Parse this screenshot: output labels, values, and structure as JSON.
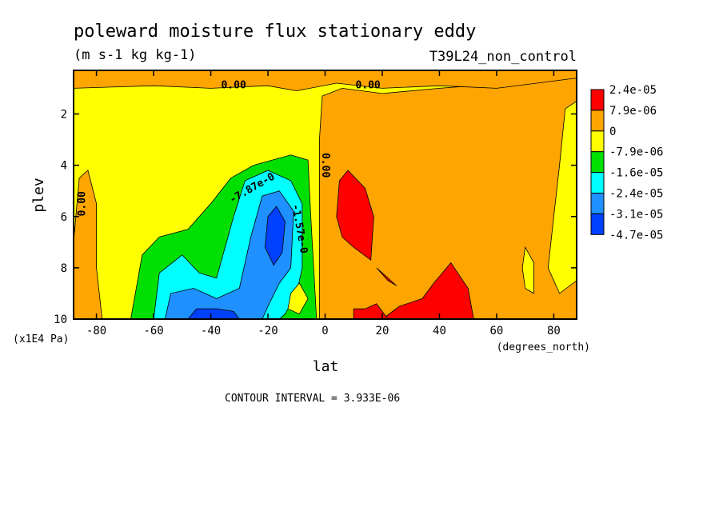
{
  "chart_data": {
    "type": "heatmap",
    "title": "poleward moisture flux stationary eddy",
    "units": "(m s-1 kg kg-1)",
    "dataset": "T39L24_non_control",
    "xlabel": "lat",
    "x_units": "(degrees_north)",
    "ylabel": "plev",
    "y_units": "(x1E4 Pa)",
    "xlim": [
      -88,
      88
    ],
    "ylim": [
      0.3,
      10
    ],
    "y_inverted": true,
    "x_ticks": [
      -80,
      -60,
      -40,
      -20,
      0,
      20,
      40,
      60,
      80
    ],
    "x_tick_labels": [
      "-80",
      "-60",
      "-40",
      "-20",
      "0",
      "20",
      "40",
      "60",
      "80"
    ],
    "y_ticks": [
      2,
      4,
      6,
      8,
      10
    ],
    "y_tick_labels": [
      "2",
      "4",
      "6",
      "8",
      "10"
    ],
    "contour_interval_text": "CONTOUR INTERVAL = 3.933E-06",
    "legend": [
      {
        "label": "2.4e-05",
        "color": "#ff0000"
      },
      {
        "label": "7.9e-06",
        "color": "#ffa500"
      },
      {
        "label": "0",
        "color": "#ffa500"
      },
      {
        "label": "-7.9e-06",
        "color": "#ffff00"
      },
      {
        "label": "-1.6e-05",
        "color": "#00e000"
      },
      {
        "label": "-2.4e-05",
        "color": "#00ffff"
      },
      {
        "label": "-3.1e-05",
        "color": "#1e90ff"
      },
      {
        "label": "-4.7e-05",
        "color": "#0040ff"
      }
    ],
    "legend_swatches": [
      "#ff0000",
      "#ffa500",
      "#ffff00",
      "#00e000",
      "#00ffff",
      "#1e90ff",
      "#0040ff"
    ],
    "contour_labels": [
      "0.00",
      "0.00",
      "0.00",
      "0.00",
      "-7.87e-0",
      "-1.57e-0"
    ],
    "regions": [
      {
        "name": "bg-yellow",
        "color": "#ffff00",
        "poly": [
          [
            -88,
            0.3
          ],
          [
            88,
            0.3
          ],
          [
            88,
            10
          ],
          [
            -88,
            10
          ]
        ]
      },
      {
        "name": "nh-orange",
        "color": "#ffa500",
        "poly": [
          [
            -1,
            1.3
          ],
          [
            6,
            1.0
          ],
          [
            20,
            1.2
          ],
          [
            40,
            1.0
          ],
          [
            88,
            0.6
          ],
          [
            88,
            10
          ],
          [
            -2,
            10
          ],
          [
            -2,
            3.0
          ]
        ]
      },
      {
        "name": "top-orange",
        "color": "#ffa500",
        "poly": [
          [
            -88,
            0.3
          ],
          [
            88,
            0.3
          ],
          [
            88,
            0.6
          ],
          [
            60,
            1.0
          ],
          [
            40,
            0.9
          ],
          [
            20,
            1.0
          ],
          [
            4,
            0.8
          ],
          [
            -10,
            1.1
          ],
          [
            -20,
            0.9
          ],
          [
            -40,
            1.0
          ],
          [
            -60,
            0.9
          ],
          [
            -88,
            1.0
          ]
        ]
      },
      {
        "name": "nh-yellow-patch-80",
        "color": "#ffff00",
        "poly": [
          [
            84,
            1.8
          ],
          [
            88,
            1.5
          ],
          [
            88,
            8.5
          ],
          [
            82,
            9.0
          ],
          [
            78,
            8.0
          ],
          [
            80,
            6.0
          ],
          [
            82,
            4.0
          ]
        ]
      },
      {
        "name": "nh-yellow-patch-72",
        "color": "#ffff00",
        "poly": [
          [
            70,
            7.2
          ],
          [
            73,
            7.8
          ],
          [
            73,
            9.0
          ],
          [
            70,
            8.8
          ],
          [
            69,
            8.0
          ]
        ]
      },
      {
        "name": "sh-orange-left",
        "color": "#ffa500",
        "poly": [
          [
            -88,
            7.0
          ],
          [
            -86,
            4.5
          ],
          [
            -83,
            4.2
          ],
          [
            -80,
            5.5
          ],
          [
            -80,
            8.0
          ],
          [
            -78,
            10
          ],
          [
            -88,
            10
          ]
        ]
      },
      {
        "name": "sh-green",
        "color": "#00e000",
        "poly": [
          [
            -68,
            10
          ],
          [
            -64,
            7.5
          ],
          [
            -58,
            6.8
          ],
          [
            -48,
            6.5
          ],
          [
            -40,
            5.5
          ],
          [
            -33,
            4.5
          ],
          [
            -25,
            4.0
          ],
          [
            -12,
            3.6
          ],
          [
            -6,
            3.8
          ],
          [
            -5,
            6.0
          ],
          [
            -4,
            8.0
          ],
          [
            -3,
            10
          ]
        ]
      },
      {
        "name": "sh-cyan",
        "color": "#00ffff",
        "poly": [
          [
            -60,
            10
          ],
          [
            -58,
            8.2
          ],
          [
            -50,
            7.5
          ],
          [
            -44,
            8.2
          ],
          [
            -38,
            8.4
          ],
          [
            -32,
            6.0
          ],
          [
            -28,
            4.6
          ],
          [
            -20,
            4.2
          ],
          [
            -12,
            4.6
          ],
          [
            -8,
            5.5
          ],
          [
            -8,
            8.0
          ],
          [
            -10,
            9.0
          ],
          [
            -14,
            9.8
          ],
          [
            -16,
            10
          ]
        ]
      },
      {
        "name": "sh-blue",
        "color": "#1e90ff",
        "poly": [
          [
            -56,
            10
          ],
          [
            -54,
            9.0
          ],
          [
            -46,
            8.8
          ],
          [
            -38,
            9.2
          ],
          [
            -30,
            8.8
          ],
          [
            -26,
            6.8
          ],
          [
            -22,
            5.2
          ],
          [
            -16,
            5.0
          ],
          [
            -11,
            5.8
          ],
          [
            -12,
            8.0
          ],
          [
            -16,
            8.6
          ],
          [
            -20,
            9.5
          ],
          [
            -22,
            10
          ]
        ]
      },
      {
        "name": "sh-dark-blue-a",
        "color": "#0040ff",
        "poly": [
          [
            -48,
            10
          ],
          [
            -45,
            9.6
          ],
          [
            -38,
            9.6
          ],
          [
            -32,
            9.7
          ],
          [
            -30,
            10
          ]
        ]
      },
      {
        "name": "sh-dark-blue-b",
        "color": "#0040ff",
        "poly": [
          [
            -20,
            6.0
          ],
          [
            -17,
            5.6
          ],
          [
            -14,
            6.2
          ],
          [
            -15,
            7.4
          ],
          [
            -18,
            7.9
          ],
          [
            -21,
            7.2
          ]
        ]
      },
      {
        "name": "sh-yellow-small",
        "color": "#ffff00",
        "poly": [
          [
            -12,
            9.0
          ],
          [
            -9,
            8.6
          ],
          [
            -6,
            9.2
          ],
          [
            -9,
            9.8
          ],
          [
            -13,
            9.6
          ]
        ]
      },
      {
        "name": "nh-red-a",
        "color": "#ff0000",
        "poly": [
          [
            4,
            6.0
          ],
          [
            5,
            4.6
          ],
          [
            8,
            4.2
          ],
          [
            14,
            4.9
          ],
          [
            17,
            6.0
          ],
          [
            16,
            7.7
          ],
          [
            10,
            7.2
          ],
          [
            6,
            6.8
          ]
        ]
      },
      {
        "name": "nh-red-b",
        "color": "#ff0000",
        "poly": [
          [
            18,
            8.0
          ],
          [
            22,
            8.4
          ],
          [
            25,
            8.7
          ],
          [
            22,
            8.5
          ]
        ]
      },
      {
        "name": "nh-red-c",
        "color": "#ff0000",
        "poly": [
          [
            20,
            10
          ],
          [
            26,
            9.5
          ],
          [
            34,
            9.2
          ],
          [
            38,
            8.6
          ],
          [
            44,
            7.8
          ],
          [
            50,
            8.8
          ],
          [
            52,
            10
          ]
        ]
      },
      {
        "name": "nh-red-d",
        "color": "#ff0000",
        "poly": [
          [
            10,
            9.6
          ],
          [
            14,
            9.6
          ],
          [
            18,
            9.4
          ],
          [
            22,
            10
          ],
          [
            10,
            10
          ]
        ]
      }
    ]
  }
}
